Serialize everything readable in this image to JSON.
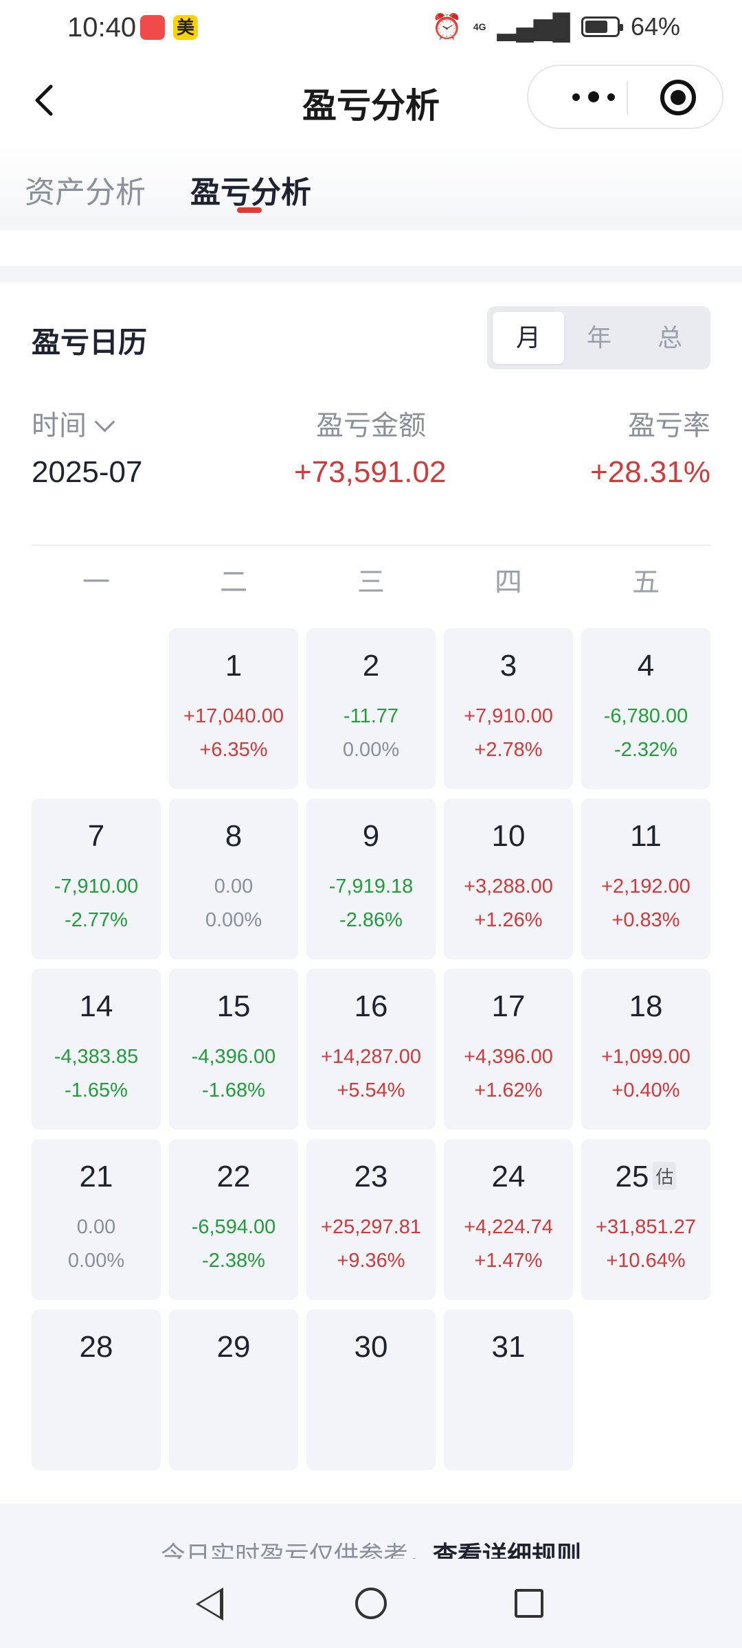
{
  "status_bar": {
    "time": "10:40",
    "app_badge": "美",
    "network": "4G",
    "battery": "64%"
  },
  "nav": {
    "title": "盈亏分析"
  },
  "tabs": [
    {
      "label": "资产分析"
    },
    {
      "label": "盈亏分析"
    }
  ],
  "calendar": {
    "title": "盈亏日历",
    "segments": [
      "月",
      "年",
      "总"
    ],
    "time_label": "时间",
    "amount_label": "盈亏金额",
    "rate_label": "盈亏率",
    "period": "2025-07",
    "amount": "+73,591.02",
    "rate": "+28.31%",
    "weekdays": [
      "一",
      "二",
      "三",
      "四",
      "五"
    ],
    "estimate_badge": "估",
    "days": [
      {
        "day": "1",
        "amount": "+17,040.00",
        "rate": "+6.35%",
        "amount_color": "red",
        "rate_color": "red"
      },
      {
        "day": "2",
        "amount": "-11.77",
        "rate": "0.00%",
        "amount_color": "green",
        "rate_color": "gray"
      },
      {
        "day": "3",
        "amount": "+7,910.00",
        "rate": "+2.78%",
        "amount_color": "red",
        "rate_color": "red"
      },
      {
        "day": "4",
        "amount": "-6,780.00",
        "rate": "-2.32%",
        "amount_color": "green",
        "rate_color": "green"
      },
      {
        "day": "7",
        "amount": "-7,910.00",
        "rate": "-2.77%",
        "amount_color": "green",
        "rate_color": "green"
      },
      {
        "day": "8",
        "amount": "0.00",
        "rate": "0.00%",
        "amount_color": "gray",
        "rate_color": "gray"
      },
      {
        "day": "9",
        "amount": "-7,919.18",
        "rate": "-2.86%",
        "amount_color": "green",
        "rate_color": "green"
      },
      {
        "day": "10",
        "amount": "+3,288.00",
        "rate": "+1.26%",
        "amount_color": "red",
        "rate_color": "red"
      },
      {
        "day": "11",
        "amount": "+2,192.00",
        "rate": "+0.83%",
        "amount_color": "red",
        "rate_color": "red"
      },
      {
        "day": "14",
        "amount": "-4,383.85",
        "rate": "-1.65%",
        "amount_color": "green",
        "rate_color": "green"
      },
      {
        "day": "15",
        "amount": "-4,396.00",
        "rate": "-1.68%",
        "amount_color": "green",
        "rate_color": "green"
      },
      {
        "day": "16",
        "amount": "+14,287.00",
        "rate": "+5.54%",
        "amount_color": "red",
        "rate_color": "red"
      },
      {
        "day": "17",
        "amount": "+4,396.00",
        "rate": "+1.62%",
        "amount_color": "red",
        "rate_color": "red"
      },
      {
        "day": "18",
        "amount": "+1,099.00",
        "rate": "+0.40%",
        "amount_color": "red",
        "rate_color": "red"
      },
      {
        "day": "21",
        "amount": "0.00",
        "rate": "0.00%",
        "amount_color": "gray",
        "rate_color": "gray"
      },
      {
        "day": "22",
        "amount": "-6,594.00",
        "rate": "-2.38%",
        "amount_color": "green",
        "rate_color": "green"
      },
      {
        "day": "23",
        "amount": "+25,297.81",
        "rate": "+9.36%",
        "amount_color": "red",
        "rate_color": "red"
      },
      {
        "day": "24",
        "amount": "+4,224.74",
        "rate": "+1.47%",
        "amount_color": "red",
        "rate_color": "red"
      },
      {
        "day": "25",
        "amount": "+31,851.27",
        "rate": "+10.64%",
        "amount_color": "red",
        "rate_color": "red",
        "estimated": true
      },
      {
        "day": "28",
        "amount": "",
        "rate": ""
      },
      {
        "day": "29",
        "amount": "",
        "rate": ""
      },
      {
        "day": "30",
        "amount": "",
        "rate": ""
      },
      {
        "day": "31",
        "amount": "",
        "rate": ""
      }
    ]
  },
  "footer": {
    "note": "今日实时盈亏仅供参考，",
    "link": "查看详细规则"
  },
  "colors": {
    "gain": "#d03a3a",
    "loss": "#1f9e3b",
    "neutral": "#8a8f9c",
    "accent": "#e53935"
  }
}
